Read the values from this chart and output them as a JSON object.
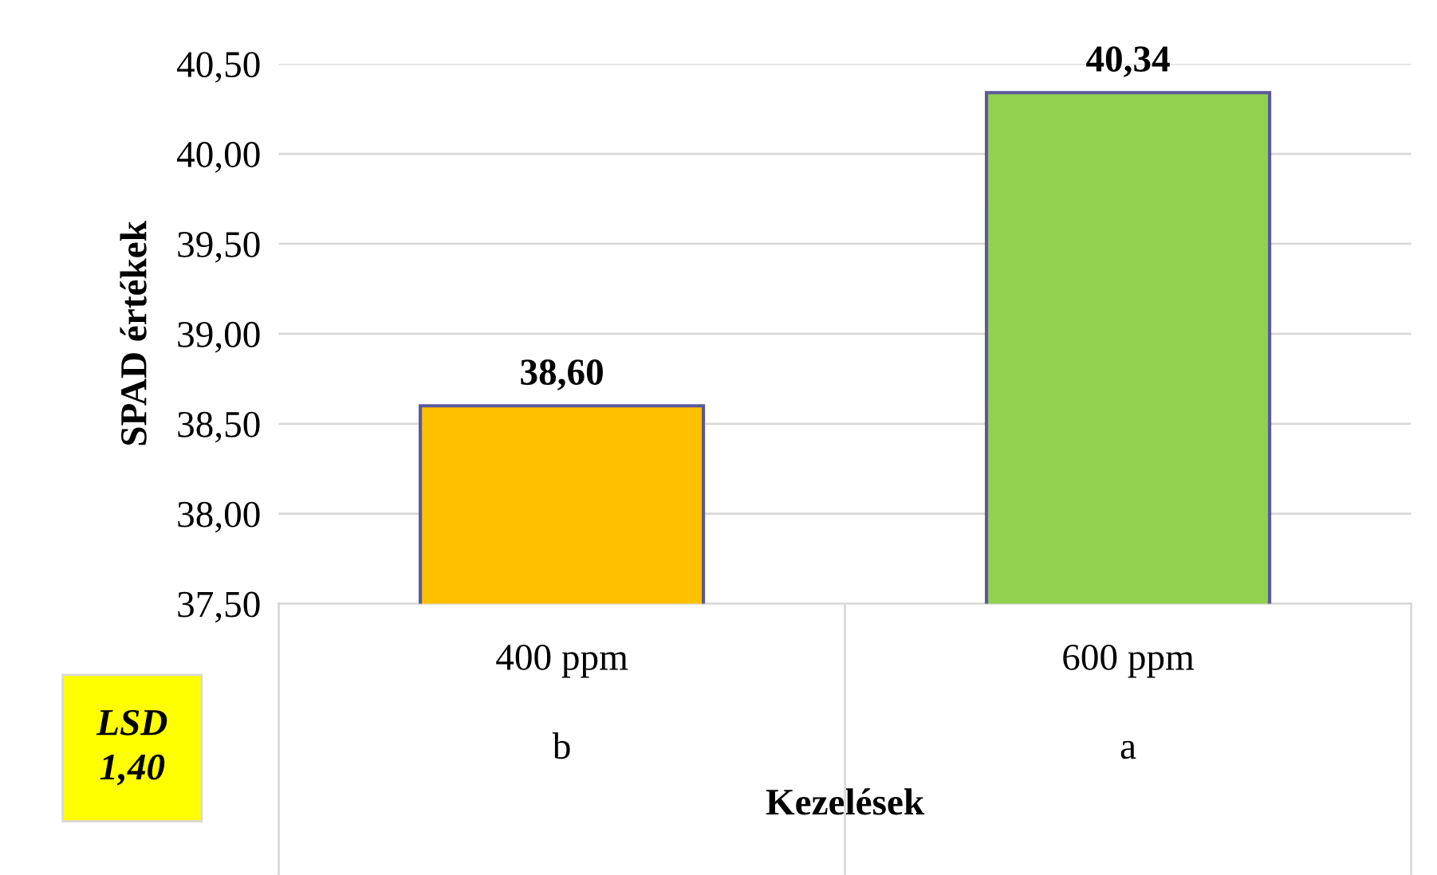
{
  "chart_data": {
    "type": "bar",
    "xlabel": "Kezelések",
    "ylabel": "SPAD értékek",
    "categories": [
      "400 ppm",
      "600 ppm"
    ],
    "values": [
      38.6,
      40.34
    ],
    "colors": [
      "#ffc000",
      "#92d050"
    ],
    "value_labels": [
      "38,60",
      "40,34"
    ],
    "ylim": [
      37.5,
      40.5
    ],
    "yticks": [
      {
        "value": 37.5,
        "label": "37,50"
      },
      {
        "value": 38.0,
        "label": "38,00"
      },
      {
        "value": 38.5,
        "label": "38,50"
      },
      {
        "value": 39.0,
        "label": "39,00"
      },
      {
        "value": 39.5,
        "label": "39,50"
      },
      {
        "value": 40.0,
        "label": "40,00"
      },
      {
        "value": 40.5,
        "label": "40,50"
      }
    ],
    "grid": "y",
    "annotations": [
      "b",
      "a",
      "LSD\n1,40"
    ]
  }
}
